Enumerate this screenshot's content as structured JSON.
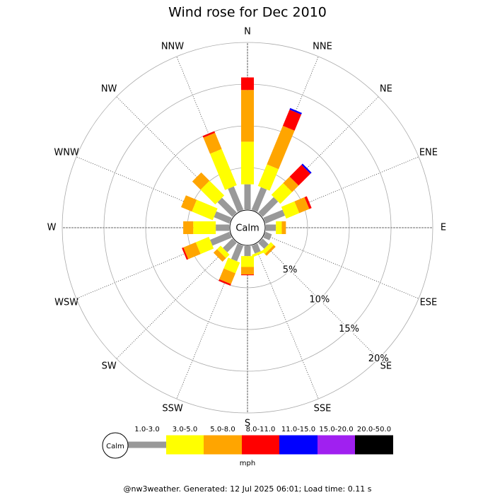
{
  "chart_data": {
    "type": "windrose",
    "title": "Wind rose for Dec 2010",
    "categories": [
      "N",
      "NNE",
      "NE",
      "ENE",
      "E",
      "ESE",
      "SE",
      "SSE",
      "S",
      "SSW",
      "SW",
      "WSW",
      "W",
      "WNW",
      "NW",
      "NNW"
    ],
    "calm_label": "Calm",
    "legend_unit": "mph",
    "footer": "@nw3weather. Generated: 12 Jul 2025 06:01; Load time: 0.11 s",
    "rlim": [
      0,
      20
    ],
    "rticks": [
      {
        "value": 5,
        "label": "5%"
      },
      {
        "value": 10,
        "label": "10%"
      },
      {
        "value": 15,
        "label": "15%"
      },
      {
        "value": 20,
        "label": "20%"
      }
    ],
    "series": [
      {
        "name": "1.0-3.0",
        "color": "#999999",
        "values": [
          3.0,
          2.9,
          2.6,
          2.5,
          1.2,
          0.8,
          1.0,
          1.0,
          1.2,
          2.0,
          1.6,
          2.5,
          1.6,
          2.0,
          2.5,
          3.0
        ]
      },
      {
        "name": "3.0-5.0",
        "color": "#ffff00",
        "values": [
          5.1,
          2.8,
          2.0,
          1.7,
          0.7,
          0,
          0.5,
          0.3,
          1.3,
          1.4,
          0.6,
          1.7,
          2.7,
          2.7,
          2.5,
          4.7
        ]
      },
      {
        "name": "5.0-8.0",
        "color": "#ffa500",
        "values": [
          6.2,
          5.0,
          1.1,
          1.3,
          0.5,
          0,
          0.3,
          0,
          0.9,
          1.4,
          0.6,
          1.6,
          1.2,
          1.4,
          1.4,
          2.1
        ]
      },
      {
        "name": "8.0-11.0",
        "color": "#ff0000",
        "values": [
          1.5,
          2.1,
          2.0,
          0.3,
          0,
          0,
          0,
          0,
          0.1,
          0.2,
          0,
          0.2,
          0,
          0,
          0,
          0.2
        ]
      },
      {
        "name": "11.0-15.0",
        "color": "#0000ff",
        "values": [
          0,
          0.2,
          0.2,
          0,
          0,
          0,
          0,
          0,
          0,
          0,
          0,
          0,
          0,
          0,
          0,
          0
        ]
      },
      {
        "name": "15.0-20.0",
        "color": "#a020f0",
        "values": [
          0,
          0,
          0,
          0,
          0,
          0,
          0,
          0,
          0,
          0,
          0,
          0,
          0,
          0,
          0,
          0
        ]
      },
      {
        "name": "20.0-50.0",
        "color": "#000000",
        "values": [
          0,
          0,
          0,
          0,
          0,
          0,
          0,
          0,
          0,
          0,
          0,
          0,
          0,
          0,
          0,
          0
        ]
      }
    ]
  }
}
